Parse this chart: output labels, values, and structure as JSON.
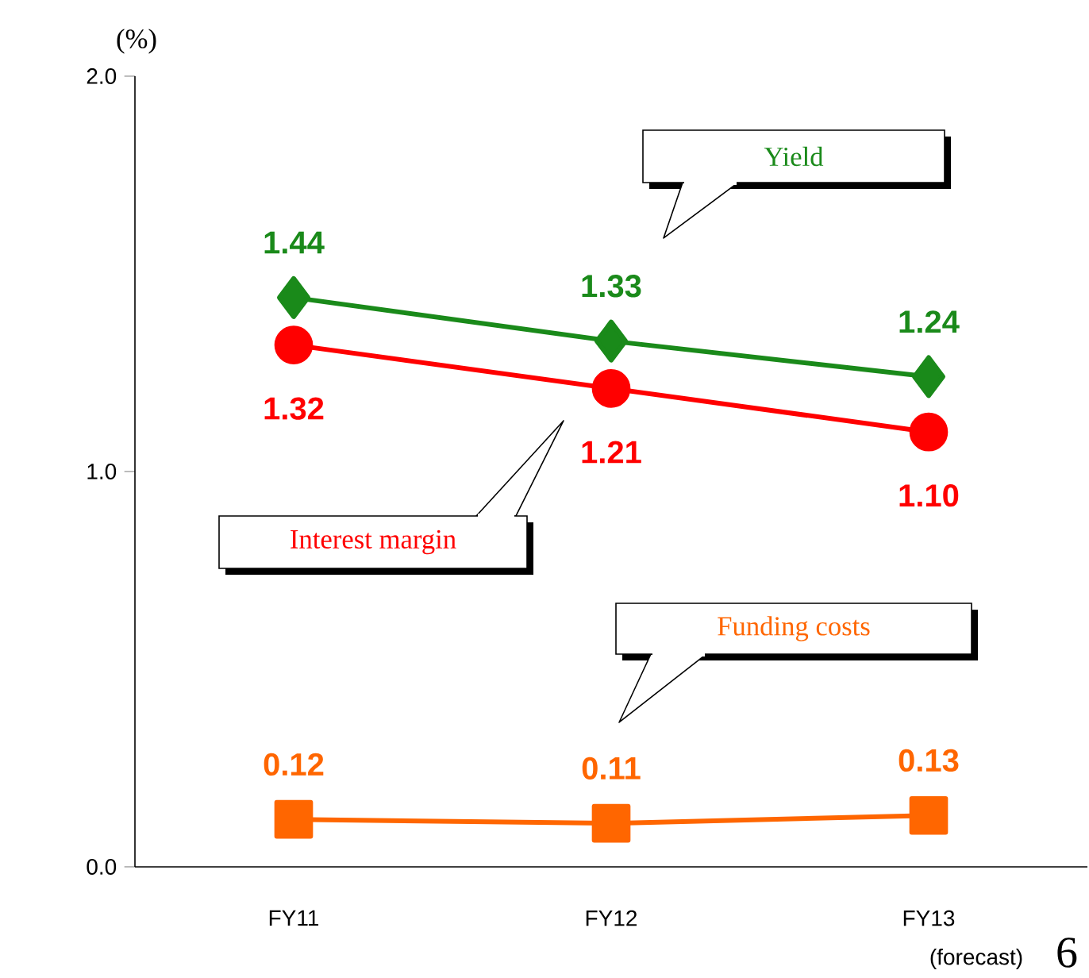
{
  "chart_data": {
    "type": "line",
    "ylabel": "(%)",
    "categories": [
      "FY11",
      "FY12",
      "FY13"
    ],
    "series": [
      {
        "name": "Yield",
        "color": "#1a8a1a",
        "marker": "diamond",
        "values": [
          1.44,
          1.33,
          1.24
        ],
        "value_labels": [
          "1.44",
          "1.33",
          "1.24"
        ]
      },
      {
        "name": "Interest margin",
        "color": "#ff0000",
        "marker": "circle",
        "values": [
          1.32,
          1.21,
          1.1
        ],
        "value_labels": [
          "1.32",
          "1.21",
          "1.10"
        ]
      },
      {
        "name": "Funding costs",
        "color": "#ff6600",
        "marker": "square",
        "values": [
          0.12,
          0.11,
          0.13
        ],
        "value_labels": [
          "0.12",
          "0.11",
          "0.13"
        ]
      }
    ],
    "ylim": [
      0,
      2
    ],
    "yticks": [
      {
        "value": 0,
        "label": "0.0"
      },
      {
        "value": 1,
        "label": "1.0"
      },
      {
        "value": 2,
        "label": "2.0"
      }
    ],
    "annotations": [
      "(forecast)",
      "6"
    ]
  }
}
